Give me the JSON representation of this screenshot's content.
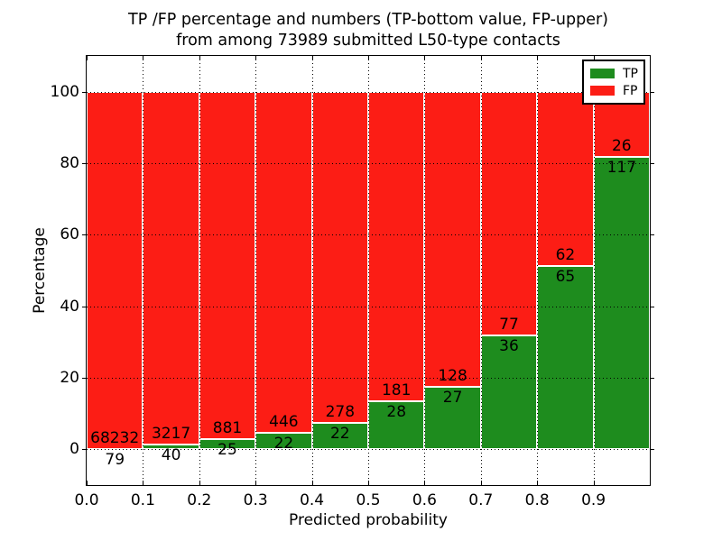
{
  "figure": {
    "title_line1": "TP /FP percentage and numbers (TP-bottom value, FP-upper)",
    "title_line2": "from among 73989 submitted L50-type contacts"
  },
  "chart_data": {
    "type": "bar",
    "variant": "stacked-100-percent",
    "title": "TP /FP percentage and numbers (TP-bottom value, FP-upper)\nfrom among 73989 submitted L50-type contacts",
    "xlabel": "Predicted probability",
    "ylabel": "Percentage",
    "xlim": [
      0.0,
      1.0
    ],
    "ylim": [
      -10,
      110
    ],
    "x_tick_labels": [
      "0.0",
      "0.1",
      "0.2",
      "0.3",
      "0.4",
      "0.5",
      "0.6",
      "0.7",
      "0.8",
      "0.9"
    ],
    "y_tick_labels": [
      "0",
      "20",
      "40",
      "60",
      "80",
      "100"
    ],
    "grid": true,
    "grid_style": "dotted",
    "bin_width": 0.1,
    "bin_starts": [
      0.0,
      0.1,
      0.2,
      0.3,
      0.4,
      0.5,
      0.6,
      0.7,
      0.8,
      0.9
    ],
    "series": [
      {
        "name": "TP",
        "stack_position": "bottom",
        "color": "#1e8c1e",
        "counts": [
          79,
          40,
          25,
          22,
          22,
          28,
          27,
          36,
          65,
          117
        ]
      },
      {
        "name": "FP",
        "stack_position": "top",
        "color": "#fc1d15",
        "counts": [
          68232,
          3217,
          881,
          446,
          278,
          181,
          128,
          77,
          62,
          26
        ]
      }
    ],
    "tp_percent_heights": [
      0.12,
      1.23,
      2.76,
      4.7,
      7.33,
      13.4,
      17.42,
      31.86,
      51.18,
      81.82
    ],
    "legend": {
      "position": "upper right",
      "entries": [
        "TP",
        "FP"
      ]
    },
    "colors": {
      "tp_green": "#1e8c1e",
      "fp_red": "#fc1d15",
      "grid": "#000000",
      "background": "#ffffff",
      "text": "#000000"
    }
  }
}
